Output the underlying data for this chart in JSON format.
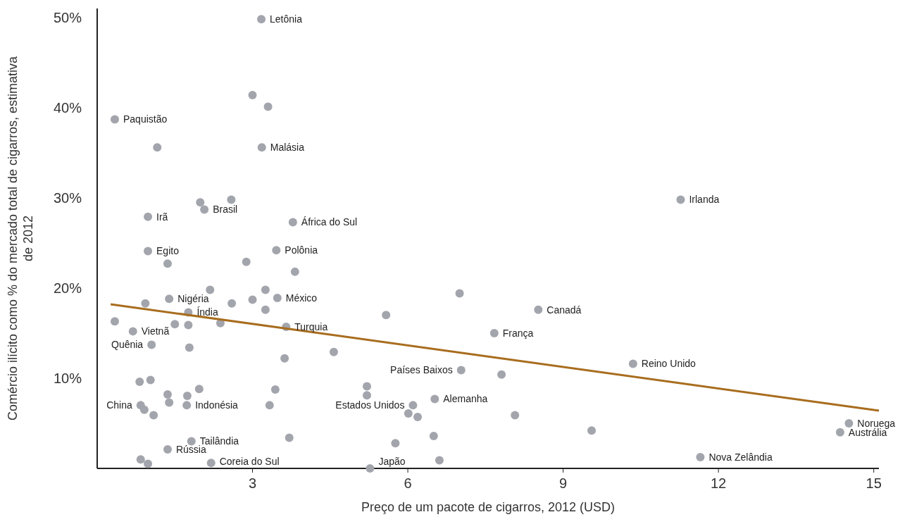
{
  "chart_data": {
    "type": "scatter",
    "xlabel": "Preço de um pacote de cigarros, 2012 (USD)",
    "ylabel": "Comércio ilícito como % do mercado total de cigarros, estimativa de 2012",
    "xlim": [
      0,
      15.1
    ],
    "ylim": [
      0,
      51
    ],
    "xticks": [
      3,
      6,
      9,
      12,
      15
    ],
    "yticks": [
      {
        "value": 10,
        "label": "10%"
      },
      {
        "value": 20,
        "label": "20%"
      },
      {
        "value": 30,
        "label": "30%"
      },
      {
        "value": 40,
        "label": "40%"
      },
      {
        "value": 50,
        "label": "50%"
      }
    ],
    "grid": false,
    "marker": "circle",
    "series": [
      {
        "color": "#a3a5ad",
        "x": [
          3.17,
          3.0,
          3.3,
          0.34,
          1.16,
          3.18,
          2.59,
          1.99,
          2.07,
          0.98,
          3.78,
          0.98,
          3.46,
          1.36,
          2.88,
          3.82,
          2.18,
          3.25,
          11.27,
          7.0,
          1.39,
          3.48,
          3.0,
          0.93,
          2.6,
          1.76,
          3.25,
          8.52,
          5.58,
          0.34,
          1.5,
          2.38,
          1.76,
          3.65,
          0.69,
          7.67,
          1.05,
          1.78,
          4.57,
          3.62,
          7.03,
          7.81,
          10.35,
          0.82,
          1.03,
          5.21,
          1.97,
          3.44,
          1.36,
          1.74,
          5.21,
          6.52,
          1.39,
          0.84,
          1.73,
          3.33,
          6.1,
          0.91,
          1.09,
          6.01,
          6.19,
          8.07,
          9.55,
          14.52,
          14.35,
          6.5,
          3.71,
          1.82,
          5.76,
          1.36,
          11.65,
          0.84,
          6.61,
          2.2,
          0.98,
          5.27
        ],
        "values": [
          49.8,
          41.4,
          40.1,
          38.7,
          35.6,
          35.6,
          29.8,
          29.5,
          28.7,
          27.9,
          27.3,
          24.1,
          24.2,
          22.7,
          22.9,
          21.8,
          19.8,
          19.8,
          29.8,
          19.4,
          18.8,
          18.9,
          18.7,
          18.3,
          18.3,
          17.3,
          17.6,
          17.6,
          17.0,
          16.3,
          16.0,
          16.1,
          15.9,
          15.7,
          15.2,
          15.0,
          13.7,
          13.4,
          12.9,
          12.2,
          10.9,
          10.4,
          11.6,
          9.6,
          9.8,
          9.1,
          8.8,
          8.75,
          8.2,
          8.05,
          8.1,
          7.7,
          7.3,
          7.0,
          7.0,
          7.0,
          7.0,
          6.5,
          5.9,
          6.1,
          5.7,
          5.9,
          4.2,
          5.0,
          4.0,
          3.6,
          3.4,
          3.0,
          2.8,
          2.1,
          1.25,
          1.0,
          0.9,
          0.6,
          0.5,
          0.0
        ]
      },
      {
        "type": "line",
        "color": "#a86d1e",
        "x": [
          0.26,
          15.1
        ],
        "values": [
          18.2,
          6.4
        ],
        "marker": "none"
      }
    ],
    "annotations": [
      {
        "text": "Letônia",
        "x": 3.17,
        "y": 49.8
      },
      {
        "text": "Paquistão",
        "x": 0.34,
        "y": 38.7
      },
      {
        "text": "Malásia",
        "x": 3.18,
        "y": 35.6
      },
      {
        "text": "Brasil",
        "x": 2.07,
        "y": 28.7
      },
      {
        "text": "Irã",
        "x": 0.98,
        "y": 27.9
      },
      {
        "text": "África do Sul",
        "x": 3.78,
        "y": 27.3
      },
      {
        "text": "Egito",
        "x": 0.98,
        "y": 24.1
      },
      {
        "text": "Polônia",
        "x": 3.46,
        "y": 24.2
      },
      {
        "text": "Irlanda",
        "x": 11.27,
        "y": 29.8
      },
      {
        "text": "Nigéria",
        "x": 1.39,
        "y": 18.8
      },
      {
        "text": "México",
        "x": 3.48,
        "y": 18.9
      },
      {
        "text": "Índia",
        "x": 1.76,
        "y": 17.3
      },
      {
        "text": "Canadá",
        "x": 8.52,
        "y": 17.6
      },
      {
        "text": "Turquia",
        "x": 3.65,
        "y": 15.7
      },
      {
        "text": "Vietnã",
        "x": 0.69,
        "y": 15.2
      },
      {
        "text": "França",
        "x": 7.67,
        "y": 15.0
      },
      {
        "text": "Quênia",
        "x": 1.05,
        "y": 13.7
      },
      {
        "text": "Países Baixos",
        "x": 7.03,
        "y": 10.9
      },
      {
        "text": "Reino Unido",
        "x": 10.35,
        "y": 11.6
      },
      {
        "text": "Alemanha",
        "x": 6.52,
        "y": 7.7
      },
      {
        "text": "China",
        "x": 0.84,
        "y": 7.0
      },
      {
        "text": "Indonésia",
        "x": 1.73,
        "y": 7.0
      },
      {
        "text": "Estados Unidos",
        "x": 6.1,
        "y": 7.0
      },
      {
        "text": "Noruega",
        "x": 14.52,
        "y": 5.0
      },
      {
        "text": "Austrália",
        "x": 14.35,
        "y": 4.0
      },
      {
        "text": "Tailândia",
        "x": 1.82,
        "y": 3.0
      },
      {
        "text": "Rússia",
        "x": 1.36,
        "y": 2.1
      },
      {
        "text": "Nova Zelândia",
        "x": 11.65,
        "y": 1.25
      },
      {
        "text": "Coreia do Sul",
        "x": 2.2,
        "y": 0.6
      },
      {
        "text": "Japão",
        "x": 5.27,
        "y": 0.0
      }
    ]
  }
}
